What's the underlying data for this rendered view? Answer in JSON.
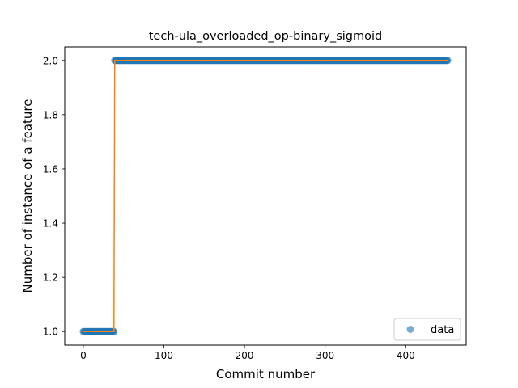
{
  "chart_data": {
    "type": "scatter",
    "title": "tech-ula_overloaded_op-binary_sigmoid",
    "xlabel": "Commit number",
    "ylabel": "Number of instance of a feature",
    "xlim": [
      -23,
      475
    ],
    "ylim": [
      0.95,
      2.05
    ],
    "x_ticks": [
      0,
      100,
      200,
      300,
      400
    ],
    "y_ticks": [
      1.0,
      1.2,
      1.4,
      1.6,
      1.8,
      2.0
    ],
    "x_tick_labels": [
      "0",
      "100",
      "200",
      "300",
      "400"
    ],
    "y_tick_labels": [
      "1.0",
      "1.2",
      "1.4",
      "1.6",
      "1.8",
      "2.0"
    ],
    "grid": false,
    "legend": {
      "position": "bottom-right",
      "entries": [
        "data"
      ]
    },
    "series": [
      {
        "name": "data",
        "kind": "points",
        "segments": [
          {
            "x_start": 0,
            "x_end": 38,
            "y": 1.0
          },
          {
            "x_start": 39,
            "x_end": 452,
            "y": 2.0
          }
        ],
        "color": "#1f77b4"
      },
      {
        "kind": "step-line",
        "x": [
          0,
          38,
          39,
          452
        ],
        "y": [
          1.0,
          1.0,
          2.0,
          2.0
        ],
        "color": "#ff7f0e"
      }
    ]
  }
}
